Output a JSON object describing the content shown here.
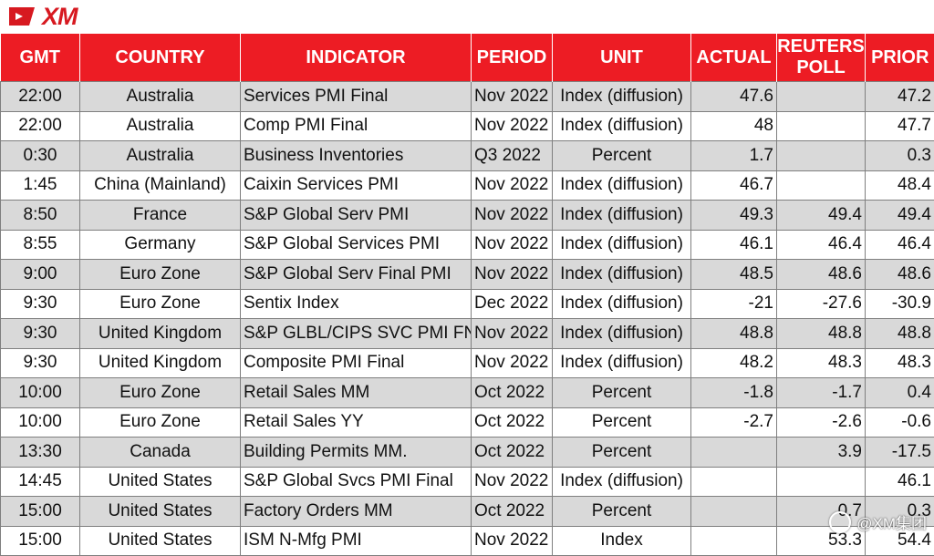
{
  "brand": {
    "logo_text": "XM",
    "accent": "#ed1c24"
  },
  "columns": [
    "GMT",
    "COUNTRY",
    "INDICATOR",
    "PERIOD",
    "UNIT",
    "ACTUAL",
    "REUTERS POLL",
    "PRIOR"
  ],
  "rows": [
    [
      "22:00",
      "Australia",
      "Services PMI Final",
      "Nov 2022",
      "Index (diffusion)",
      "47.6",
      "",
      "47.2"
    ],
    [
      "22:00",
      "Australia",
      "Comp PMI Final",
      "Nov 2022",
      "Index (diffusion)",
      "48",
      "",
      "47.7"
    ],
    [
      "0:30",
      "Australia",
      "Business Inventories",
      "Q3 2022",
      "Percent",
      "1.7",
      "",
      "0.3"
    ],
    [
      "1:45",
      "China (Mainland)",
      "Caixin Services PMI",
      "Nov 2022",
      "Index (diffusion)",
      "46.7",
      "",
      "48.4"
    ],
    [
      "8:50",
      "France",
      "S&P Global Serv PMI",
      "Nov 2022",
      "Index (diffusion)",
      "49.3",
      "49.4",
      "49.4"
    ],
    [
      "8:55",
      "Germany",
      "S&P Global Services PMI",
      "Nov 2022",
      "Index (diffusion)",
      "46.1",
      "46.4",
      "46.4"
    ],
    [
      "9:00",
      "Euro Zone",
      "S&P Global Serv Final PMI",
      "Nov 2022",
      "Index (diffusion)",
      "48.5",
      "48.6",
      "48.6"
    ],
    [
      "9:30",
      "Euro Zone",
      "Sentix Index",
      "Dec 2022",
      "Index (diffusion)",
      "-21",
      "-27.6",
      "-30.9"
    ],
    [
      "9:30",
      "United Kingdom",
      "S&P GLBL/CIPS SVC PMI FNL",
      "Nov 2022",
      "Index (diffusion)",
      "48.8",
      "48.8",
      "48.8"
    ],
    [
      "9:30",
      "United Kingdom",
      "Composite PMI Final",
      "Nov 2022",
      "Index (diffusion)",
      "48.2",
      "48.3",
      "48.3"
    ],
    [
      "10:00",
      "Euro Zone",
      "Retail Sales MM",
      "Oct 2022",
      "Percent",
      "-1.8",
      "-1.7",
      "0.4"
    ],
    [
      "10:00",
      "Euro Zone",
      "Retail Sales YY",
      "Oct 2022",
      "Percent",
      "-2.7",
      "-2.6",
      "-0.6"
    ],
    [
      "13:30",
      "Canada",
      "Building Permits MM.",
      "Oct 2022",
      "Percent",
      "",
      "3.9",
      "-17.5"
    ],
    [
      "14:45",
      "United States",
      "S&P Global Svcs PMI Final",
      "Nov 2022",
      "Index (diffusion)",
      "",
      "",
      "46.1"
    ],
    [
      "15:00",
      "United States",
      "Factory Orders MM",
      "Oct 2022",
      "Percent",
      "",
      "0.7",
      "0.3"
    ],
    [
      "15:00",
      "United States",
      "ISM N-Mfg PMI",
      "Nov 2022",
      "Index",
      "",
      "53.3",
      "54.4"
    ]
  ],
  "watermark": {
    "text": "@XM集团",
    "icon": "wechat-icon"
  }
}
